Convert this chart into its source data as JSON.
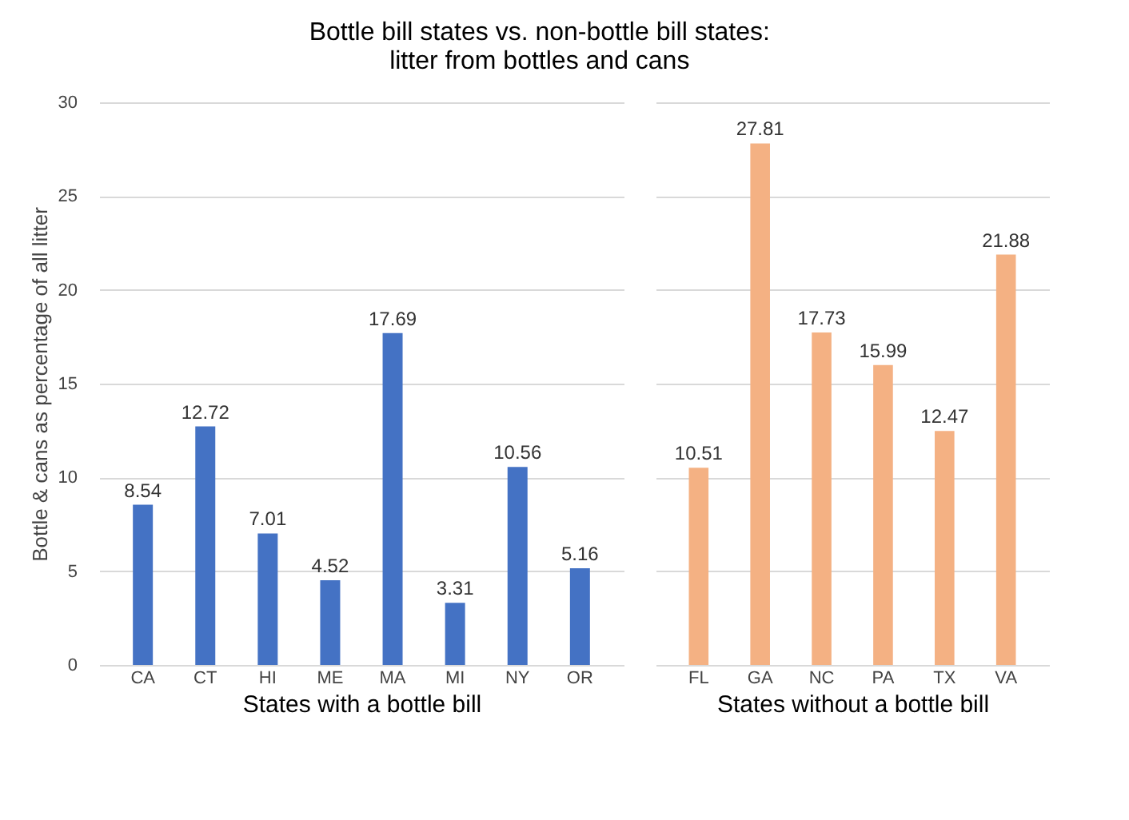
{
  "chart_data": [
    {
      "type": "bar",
      "title": "Bottle bill states vs. non-bottle bill states:\nlitter from bottles and cans",
      "xlabel": "States with a bottle bill",
      "ylabel": "Bottle & cans as percentage of all litter",
      "categories": [
        "CA",
        "CT",
        "HI",
        "ME",
        "MA",
        "MI",
        "NY",
        "OR"
      ],
      "values": [
        8.54,
        12.72,
        7.01,
        4.52,
        17.69,
        3.31,
        10.56,
        5.16
      ],
      "color": "#4472c4",
      "ylim": [
        0,
        30
      ],
      "yticks": [
        0,
        5,
        10,
        15,
        20,
        25,
        30
      ],
      "grid": "y",
      "data_labels": true
    },
    {
      "type": "bar",
      "xlabel": "States without a bottle bill",
      "categories": [
        "FL",
        "GA",
        "NC",
        "PA",
        "TX",
        "VA"
      ],
      "values": [
        10.51,
        27.81,
        17.73,
        15.99,
        12.47,
        21.88
      ],
      "color": "#f4b183",
      "ylim": [
        0,
        30
      ],
      "yticks": [
        0,
        5,
        10,
        15,
        20,
        25,
        30
      ],
      "grid": "y",
      "data_labels": true,
      "tick_labels": "x"
    }
  ]
}
